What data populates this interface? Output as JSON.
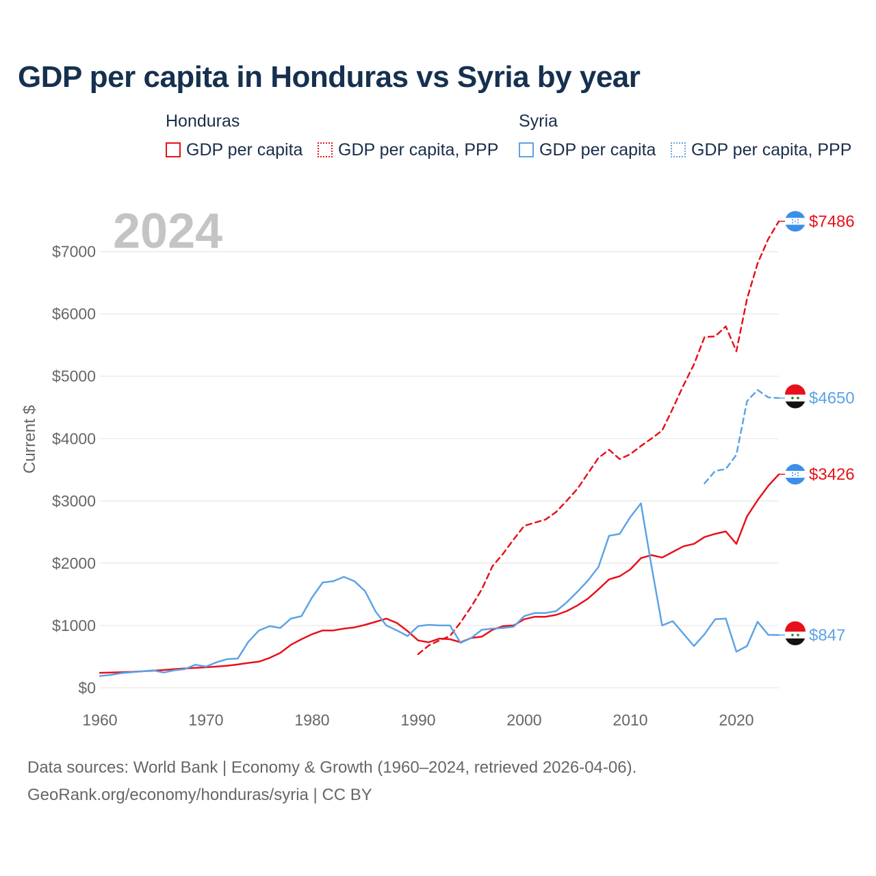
{
  "title": "GDP per capita in Honduras vs Syria by year",
  "legend": {
    "honduras": {
      "label": "Honduras",
      "gdp": "GDP per capita",
      "ppp": "GDP per capita, PPP"
    },
    "syria": {
      "label": "Syria",
      "gdp": "GDP per capita",
      "ppp": "GDP per capita, PPP"
    }
  },
  "colors": {
    "honduras": "#e8101a",
    "syria": "#5ba3e6",
    "grid": "#e6e6e6",
    "year": "#c4c4c4",
    "axis_text": "#666666"
  },
  "footer": {
    "line1": "Data sources: World Bank | Economy & Growth (1960–2024, retrieved 2026-04-06).",
    "line2": "GeoRank.org/economy/honduras/syria | CC BY"
  },
  "chart_data": {
    "type": "line",
    "title": "GDP per capita in Honduras vs Syria by year",
    "year_label": "2024",
    "ylabel": "Current $",
    "xlim": [
      1960,
      2024
    ],
    "ylim": [
      0,
      7600
    ],
    "x_ticks": [
      1960,
      1970,
      1980,
      1990,
      2000,
      2010,
      2020
    ],
    "y_ticks": [
      {
        "value": 0,
        "label": "$0"
      },
      {
        "value": 1000,
        "label": "$1000"
      },
      {
        "value": 2000,
        "label": "$2000"
      },
      {
        "value": 3000,
        "label": "$3000"
      },
      {
        "value": 4000,
        "label": "$4000"
      },
      {
        "value": 5000,
        "label": "$5000"
      },
      {
        "value": 6000,
        "label": "$6000"
      },
      {
        "value": 7000,
        "label": "$7000"
      }
    ],
    "series": [
      {
        "name": "Honduras GDP per capita",
        "country": "honduras",
        "style": "solid",
        "end_label": "$3426",
        "x": [
          1960,
          1961,
          1962,
          1963,
          1964,
          1965,
          1966,
          1967,
          1968,
          1969,
          1970,
          1971,
          1972,
          1973,
          1974,
          1975,
          1976,
          1977,
          1978,
          1979,
          1980,
          1981,
          1982,
          1983,
          1984,
          1985,
          1986,
          1987,
          1988,
          1989,
          1990,
          1991,
          1992,
          1993,
          1994,
          1995,
          1996,
          1997,
          1998,
          1999,
          2000,
          2001,
          2002,
          2003,
          2004,
          2005,
          2006,
          2007,
          2008,
          2009,
          2010,
          2011,
          2012,
          2013,
          2014,
          2015,
          2016,
          2017,
          2018,
          2019,
          2020,
          2021,
          2022,
          2023,
          2024
        ],
        "y": [
          240,
          245,
          250,
          255,
          265,
          275,
          285,
          300,
          310,
          320,
          330,
          340,
          355,
          375,
          400,
          420,
          480,
          560,
          690,
          780,
          860,
          920,
          920,
          950,
          970,
          1010,
          1060,
          1110,
          1040,
          910,
          760,
          730,
          790,
          780,
          730,
          800,
          820,
          930,
          990,
          1000,
          1100,
          1140,
          1140,
          1170,
          1230,
          1320,
          1430,
          1580,
          1740,
          1790,
          1900,
          2080,
          2130,
          2090,
          2180,
          2270,
          2310,
          2420,
          2470,
          2510,
          2310,
          2750,
          3010,
          3240,
          3426
        ]
      },
      {
        "name": "Honduras GDP per capita, PPP",
        "country": "honduras",
        "style": "dashed",
        "end_label": "$7486",
        "x": [
          1990,
          1991,
          1992,
          1993,
          1994,
          1995,
          1996,
          1997,
          1998,
          1999,
          2000,
          2001,
          2002,
          2003,
          2004,
          2005,
          2006,
          2007,
          2008,
          2009,
          2010,
          2011,
          2012,
          2013,
          2014,
          2015,
          2016,
          2017,
          2018,
          2019,
          2020,
          2021,
          2022,
          2023,
          2024
        ],
        "y": [
          540,
          680,
          760,
          830,
          1050,
          1300,
          1580,
          1950,
          2150,
          2380,
          2600,
          2650,
          2700,
          2820,
          3000,
          3190,
          3440,
          3690,
          3820,
          3670,
          3750,
          3880,
          4000,
          4130,
          4480,
          4850,
          5190,
          5630,
          5640,
          5800,
          5400,
          6240,
          6810,
          7200,
          7486
        ]
      },
      {
        "name": "Syria GDP per capita",
        "country": "syria",
        "style": "solid",
        "end_label": "$847",
        "x": [
          1960,
          1961,
          1962,
          1963,
          1964,
          1965,
          1966,
          1967,
          1968,
          1969,
          1970,
          1971,
          1972,
          1973,
          1974,
          1975,
          1976,
          1977,
          1978,
          1979,
          1980,
          1981,
          1982,
          1983,
          1984,
          1985,
          1986,
          1987,
          1988,
          1989,
          1990,
          1991,
          1992,
          1993,
          1994,
          1995,
          1996,
          1997,
          1998,
          1999,
          2000,
          2001,
          2002,
          2003,
          2004,
          2005,
          2006,
          2007,
          2008,
          2009,
          2010,
          2011,
          2012,
          2013,
          2014,
          2015,
          2016,
          2017,
          2018,
          2019,
          2020,
          2021,
          2022,
          2023,
          2024
        ],
        "y": [
          190,
          205,
          235,
          250,
          265,
          280,
          245,
          280,
          300,
          370,
          340,
          410,
          460,
          470,
          740,
          920,
          990,
          960,
          1110,
          1150,
          1450,
          1690,
          1710,
          1780,
          1710,
          1550,
          1220,
          1000,
          920,
          830,
          990,
          1010,
          1000,
          1000,
          720,
          800,
          930,
          950,
          960,
          980,
          1150,
          1200,
          1200,
          1230,
          1370,
          1540,
          1720,
          1940,
          2440,
          2470,
          2740,
          2960,
          1950,
          1000,
          1070,
          870,
          670,
          860,
          1100,
          1110,
          580,
          670,
          1060,
          850,
          847
        ]
      },
      {
        "name": "Syria GDP per capita, PPP",
        "country": "syria",
        "style": "dashed",
        "end_label": "$4650",
        "x": [
          2017,
          2018,
          2019,
          2020,
          2021,
          2022,
          2023,
          2024
        ],
        "y": [
          3280,
          3480,
          3510,
          3740,
          4600,
          4780,
          4660,
          4650
        ]
      }
    ]
  }
}
